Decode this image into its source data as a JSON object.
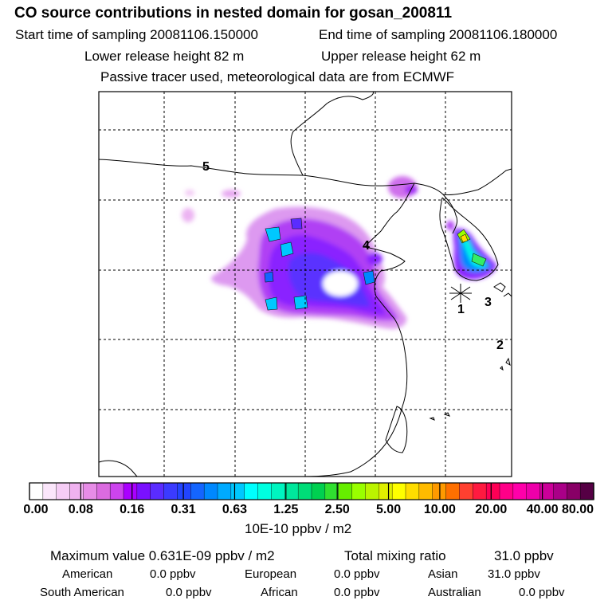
{
  "header": {
    "title": "CO  source contributions in nested domain for gosan_200811",
    "start_label": "Start time of sampling 20081106.150000",
    "end_label": "End time of sampling 20081106.180000",
    "lower_label": "Lower release height   82 m",
    "upper_label": "Upper release height   62 m",
    "tracer_note": "Passive tracer used, meteorological data are from ECMWF"
  },
  "map": {
    "region_labels": [
      "5",
      "4",
      "3",
      "2",
      "1"
    ],
    "receptor": "gosan"
  },
  "colorbar": {
    "ticks": [
      "0.00",
      "0.08",
      "0.16",
      "0.31",
      "0.63",
      "1.25",
      "2.50",
      "5.00",
      "10.00",
      "20.00",
      "40.00",
      "80.00"
    ],
    "units": "10E-10 ppbv / m2",
    "colors": [
      "#ffffff",
      "#fbe6fb",
      "#f6cdf6",
      "#f0b2f0",
      "#e78ce7",
      "#db6be0",
      "#cc44ee",
      "#aa00ff",
      "#7a10ff",
      "#5a2cff",
      "#3b3bff",
      "#2244ff",
      "#1465ff",
      "#0088ff",
      "#00aaff",
      "#00c8ff",
      "#00ffff",
      "#00ffe0",
      "#00f5c0",
      "#00e89c",
      "#00dd78",
      "#00d050",
      "#30e030",
      "#66ee00",
      "#99ff00",
      "#bbf400",
      "#e0f000",
      "#ffff00",
      "#ffdd00",
      "#ffbb00",
      "#ff9a00",
      "#ff7000",
      "#ff4030",
      "#ff1a40",
      "#ff0055",
      "#ff0088",
      "#ff00aa",
      "#ee00aa",
      "#cc0099",
      "#aa0088",
      "#880066",
      "#550044"
    ]
  },
  "stats": {
    "max_label": "Maximum value  0.631E-09 ppbv / m2",
    "total_label": "Total mixing ratio",
    "total_value": "31.0 ppbv",
    "regions": [
      {
        "name": "American",
        "value": "0.0 ppbv"
      },
      {
        "name": "European",
        "value": "0.0 ppbv"
      },
      {
        "name": "Asian",
        "value": "31.0 ppbv"
      },
      {
        "name": "South American",
        "value": "0.0 ppbv"
      },
      {
        "name": "African",
        "value": "0.0 ppbv"
      },
      {
        "name": "Australian",
        "value": "0.0 ppbv"
      }
    ]
  }
}
